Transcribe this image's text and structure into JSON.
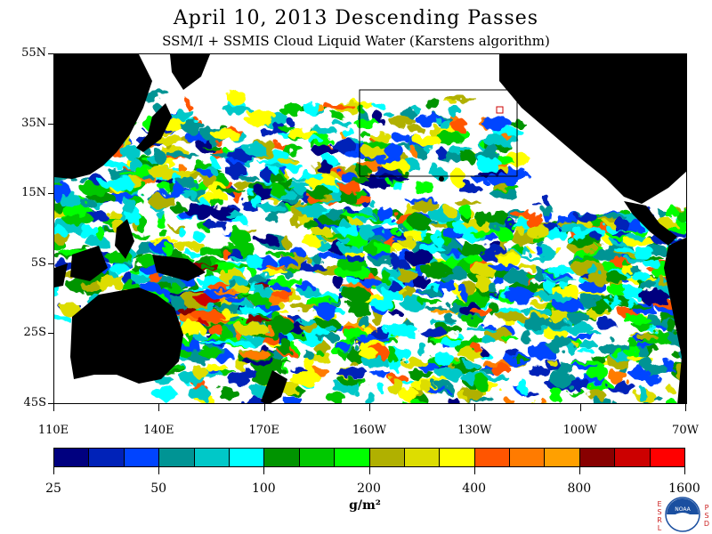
{
  "header": {
    "title": "April 10, 2013  Descending Passes",
    "subtitle": "SSM/I + SSMIS Cloud Liquid Water (Karstens algorithm)"
  },
  "map": {
    "lat_labels": [
      "55N",
      "35N",
      "15N",
      "5S",
      "25S",
      "45S"
    ],
    "lon_labels": [
      "110E",
      "140E",
      "170E",
      "160W",
      "130W",
      "100W",
      "70W"
    ],
    "extent": {
      "lon_min": 110,
      "lon_max": 290,
      "lat_min": -45,
      "lat_max": 55
    },
    "land_color": "#000000",
    "no_data_color": "#ffffff"
  },
  "colorbar": {
    "tick_labels": [
      "25",
      "50",
      "100",
      "200",
      "400",
      "800",
      "1600"
    ],
    "units": "g/m²",
    "colors": [
      "#00007f",
      "#0022b8",
      "#0044ff",
      "#009494",
      "#00c8c8",
      "#00ffff",
      "#009400",
      "#00c800",
      "#00ff00",
      "#b0b000",
      "#dddd00",
      "#ffff00",
      "#ff5500",
      "#ff7b00",
      "#ffa000",
      "#880000",
      "#cc0000",
      "#ff0000"
    ]
  },
  "logo": {
    "left_letters": [
      "E",
      "S",
      "R",
      "L"
    ],
    "right_letters": [
      "P",
      "S",
      "D"
    ],
    "emblem_text": "NOAA"
  }
}
